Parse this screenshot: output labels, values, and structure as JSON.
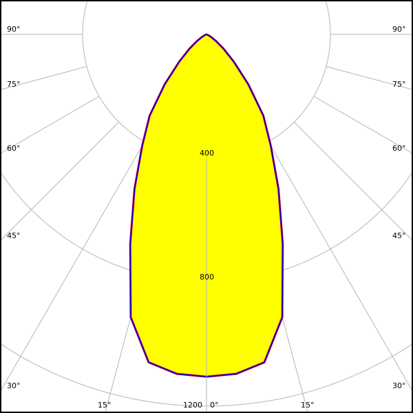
{
  "chart_data": {
    "type": "polar",
    "radial_ticks": [
      400,
      800,
      1200
    ],
    "radial_tick_labels": [
      "400",
      "800",
      "1200"
    ],
    "angle_ticks": [
      0,
      15,
      30,
      45,
      60,
      75,
      90
    ],
    "angle_tick_labels": {
      "0": "0°",
      "15": "15°",
      "30": "30°",
      "45": "45°",
      "60": "60°",
      "75": "75°",
      "90": "90°"
    },
    "rmax": 1200,
    "grid": true,
    "colors": {
      "fill": "#ffff00",
      "stroke": "#0000cc",
      "stroke_inner": "#dd0033",
      "grid": "#b4b4b4"
    },
    "series": [
      {
        "angles_deg": [
          0,
          5,
          10,
          15,
          20,
          25,
          30,
          35,
          40,
          45,
          50,
          55,
          60,
          65,
          70,
          75,
          80,
          85,
          90
        ],
        "values": [
          1105,
          1100,
          1075,
          945,
          720,
          550,
          415,
          320,
          210,
          125,
          72,
          38,
          18,
          7,
          2,
          0,
          0,
          0,
          0
        ],
        "symmetric": true
      }
    ]
  }
}
